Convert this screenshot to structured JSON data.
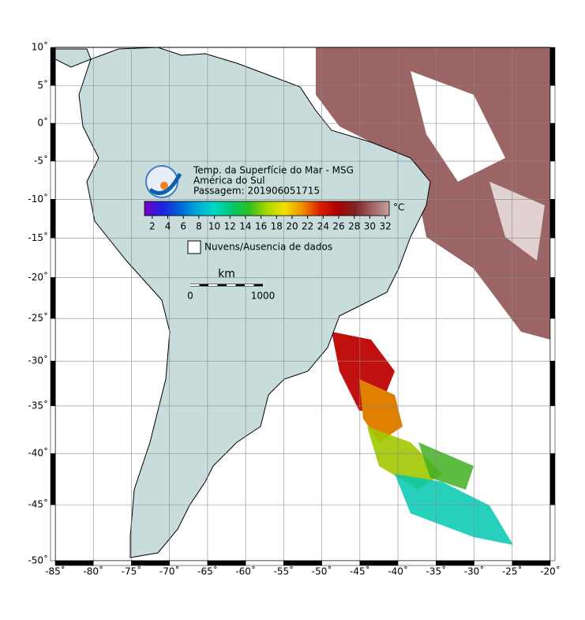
{
  "map": {
    "xlim": [
      -85,
      -20
    ],
    "ylim": [
      -50,
      10
    ],
    "xticks": [
      {
        "value": -85,
        "label": "-85˚"
      },
      {
        "value": -80,
        "label": "-80˚"
      },
      {
        "value": -75,
        "label": "-75˚"
      },
      {
        "value": -70,
        "label": "-70˚"
      },
      {
        "value": -65,
        "label": "-65˚"
      },
      {
        "value": -60,
        "label": "-60˚"
      },
      {
        "value": -55,
        "label": "-55˚"
      },
      {
        "value": -50,
        "label": "-50˚"
      },
      {
        "value": -45,
        "label": "-45˚"
      },
      {
        "value": -40,
        "label": "-40˚"
      },
      {
        "value": -35,
        "label": "-35˚"
      },
      {
        "value": -30,
        "label": "-30˚"
      },
      {
        "value": -25,
        "label": "-25˚"
      },
      {
        "value": -20,
        "label": "-20˚"
      }
    ],
    "yticks": [
      {
        "value": 10,
        "label": "10˚"
      },
      {
        "value": 5,
        "label": "5˚"
      },
      {
        "value": 0,
        "label": "0˚"
      },
      {
        "value": -5,
        "label": "-5˚"
      },
      {
        "value": -10,
        "label": "-10˚"
      },
      {
        "value": -15,
        "label": "-15˚"
      },
      {
        "value": -20,
        "label": "-20˚"
      },
      {
        "value": -25,
        "label": "-25˚"
      },
      {
        "value": -30,
        "label": "-30˚"
      },
      {
        "value": -35,
        "label": "-35˚"
      },
      {
        "value": -40,
        "label": "-40˚"
      },
      {
        "value": -45,
        "label": "-45˚"
      },
      {
        "value": -50,
        "label": "-50˚"
      }
    ],
    "projection": "mercator",
    "grid": true
  },
  "header": {
    "title": "Temp. da Superfície do Mar - MSG",
    "region": "América do Sul",
    "pass": "Passagem: 201906051715"
  },
  "colorbar": {
    "lim": [
      1,
      32.5
    ],
    "ticks": [
      2,
      4,
      6,
      8,
      10,
      12,
      14,
      16,
      18,
      20,
      22,
      24,
      26,
      28,
      30,
      32
    ],
    "unit": "°C",
    "colors": [
      "#7a00c8",
      "#2020e0",
      "#0060d8",
      "#00a8d8",
      "#00d8c8",
      "#00c870",
      "#30c020",
      "#a8d800",
      "#f0e000",
      "#f09000",
      "#e02000",
      "#b00000",
      "#802020",
      "#a06060",
      "#c8a0a0"
    ]
  },
  "legend": {
    "label": "Nuvens/Ausencia de dados"
  },
  "scale_bar": {
    "unit": "km",
    "start": 0,
    "end": 1000
  }
}
